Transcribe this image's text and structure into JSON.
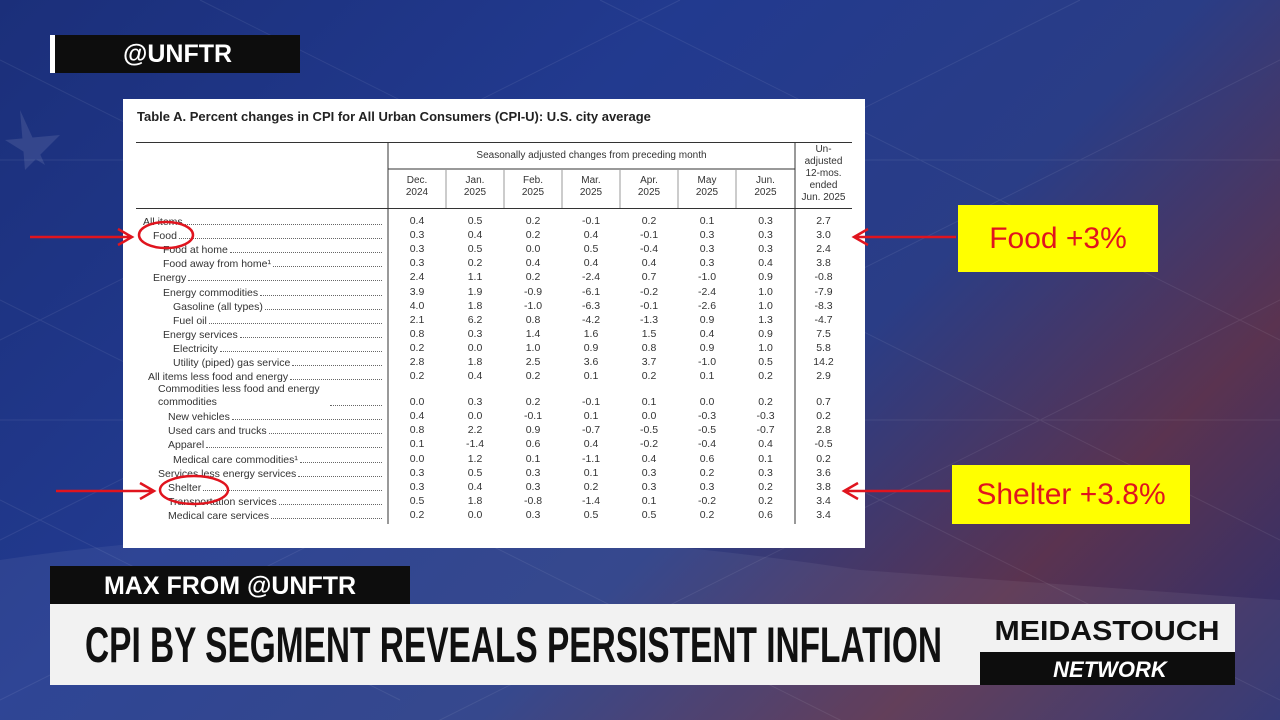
{
  "header": {
    "handle": "@UNFTR"
  },
  "table": {
    "title": "Table A. Percent changes in CPI for All Urban Consumers (CPI-U): U.S. city average",
    "group_header": "Seasonally adjusted changes from preceding month",
    "columns": [
      [
        "Dec.",
        "2024"
      ],
      [
        "Jan.",
        "2025"
      ],
      [
        "Feb.",
        "2025"
      ],
      [
        "Mar.",
        "2025"
      ],
      [
        "Apr.",
        "2025"
      ],
      [
        "May",
        "2025"
      ],
      [
        "Jun.",
        "2025"
      ],
      [
        "Un-",
        "adjusted",
        "12-mos.",
        "ended",
        "Jun. 2025"
      ]
    ],
    "rows": [
      [
        "All items",
        "0.4",
        "0.5",
        "0.2",
        "-0.1",
        "0.2",
        "0.1",
        "0.3",
        "2.7"
      ],
      [
        "Food",
        "0.3",
        "0.4",
        "0.2",
        "0.4",
        "-0.1",
        "0.3",
        "0.3",
        "3.0"
      ],
      [
        "Food at home",
        "0.3",
        "0.5",
        "0.0",
        "0.5",
        "-0.4",
        "0.3",
        "0.3",
        "2.4"
      ],
      [
        "Food away from home¹",
        "0.3",
        "0.2",
        "0.4",
        "0.4",
        "0.4",
        "0.3",
        "0.4",
        "3.8"
      ],
      [
        "Energy",
        "2.4",
        "1.1",
        "0.2",
        "-2.4",
        "0.7",
        "-1.0",
        "0.9",
        "-0.8"
      ],
      [
        "Energy commodities",
        "3.9",
        "1.9",
        "-0.9",
        "-6.1",
        "-0.2",
        "-2.4",
        "1.0",
        "-7.9"
      ],
      [
        "Gasoline (all types)",
        "4.0",
        "1.8",
        "-1.0",
        "-6.3",
        "-0.1",
        "-2.6",
        "1.0",
        "-8.3"
      ],
      [
        "Fuel oil",
        "2.1",
        "6.2",
        "0.8",
        "-4.2",
        "-1.3",
        "0.9",
        "1.3",
        "-4.7"
      ],
      [
        "Energy services",
        "0.8",
        "0.3",
        "1.4",
        "1.6",
        "1.5",
        "0.4",
        "0.9",
        "7.5"
      ],
      [
        "Electricity",
        "0.2",
        "0.0",
        "1.0",
        "0.9",
        "0.8",
        "0.9",
        "1.0",
        "5.8"
      ],
      [
        "Utility (piped) gas service",
        "2.8",
        "1.8",
        "2.5",
        "3.6",
        "3.7",
        "-1.0",
        "0.5",
        "14.2"
      ],
      [
        "All items less food and energy",
        "0.2",
        "0.4",
        "0.2",
        "0.1",
        "0.2",
        "0.1",
        "0.2",
        "2.9"
      ],
      [
        "Commodities less food and energy commodities",
        "0.0",
        "0.3",
        "0.2",
        "-0.1",
        "0.1",
        "0.0",
        "0.2",
        "0.7"
      ],
      [
        "New vehicles",
        "0.4",
        "0.0",
        "-0.1",
        "0.1",
        "0.0",
        "-0.3",
        "-0.3",
        "0.2"
      ],
      [
        "Used cars and trucks",
        "0.8",
        "2.2",
        "0.9",
        "-0.7",
        "-0.5",
        "-0.5",
        "-0.7",
        "2.8"
      ],
      [
        "Apparel",
        "0.1",
        "-1.4",
        "0.6",
        "0.4",
        "-0.2",
        "-0.4",
        "0.4",
        "-0.5"
      ],
      [
        "Medical care commodities¹",
        "0.0",
        "1.2",
        "0.1",
        "-1.1",
        "0.4",
        "0.6",
        "0.1",
        "0.2"
      ],
      [
        "Services less energy services",
        "0.3",
        "0.5",
        "0.3",
        "0.1",
        "0.3",
        "0.2",
        "0.3",
        "3.6"
      ],
      [
        "Shelter",
        "0.3",
        "0.4",
        "0.3",
        "0.2",
        "0.3",
        "0.3",
        "0.2",
        "3.8"
      ],
      [
        "Transportation services",
        "0.5",
        "1.8",
        "-0.8",
        "-1.4",
        "0.1",
        "-0.2",
        "0.2",
        "3.4"
      ],
      [
        "Medical care services",
        "0.2",
        "0.0",
        "0.3",
        "0.5",
        "0.5",
        "0.2",
        "0.6",
        "3.4"
      ]
    ]
  },
  "annotations": [
    "Food +3%",
    "Shelter +3.8%"
  ],
  "lower_third": {
    "speaker": "MAX FROM @UNFTR",
    "headline": "CPI BY SEGMENT REVEALS PERSISTENT INFLATION",
    "logo_top": "MEIDASTOUCH",
    "logo_bottom": "NETWORK"
  }
}
